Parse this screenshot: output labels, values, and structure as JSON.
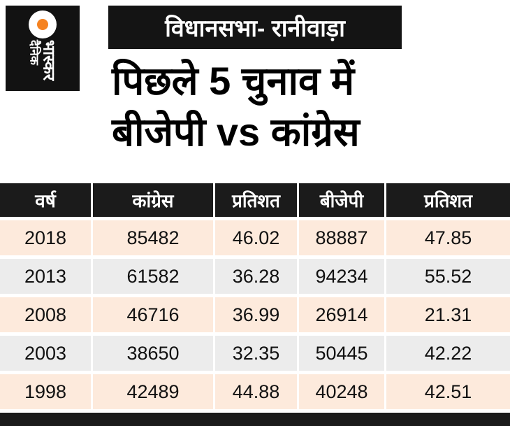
{
  "logo": {
    "line1": "दैनिक",
    "line2": "भास्कर"
  },
  "banner": {
    "text": "विधानसभा- रानीवाड़ा"
  },
  "title": {
    "line1": "पिछले 5 चुनाव में",
    "line2": "बीजेपी vs कांग्रेस"
  },
  "colors": {
    "header_bg": "#1b1b1b",
    "row_peach": "#fdeadc",
    "row_gray": "#ececec",
    "logo_orange": "#f58220"
  },
  "chart_data": {
    "type": "table",
    "title": "पिछले 5 चुनाव में बीजेपी vs कांग्रेस",
    "columns": [
      "वर्ष",
      "कांग्रेस",
      "प्रतिशत",
      "बीजेपी",
      "प्रतिशत"
    ],
    "rows": [
      [
        "2018",
        "85482",
        "46.02",
        "88887",
        "47.85"
      ],
      [
        "2013",
        "61582",
        "36.28",
        "94234",
        "55.52"
      ],
      [
        "2008",
        "46716",
        "36.99",
        "26914",
        "21.31"
      ],
      [
        "2003",
        "38650",
        "32.35",
        "50445",
        "42.22"
      ],
      [
        "1998",
        "42489",
        "44.88",
        "40248",
        "42.51"
      ]
    ]
  }
}
